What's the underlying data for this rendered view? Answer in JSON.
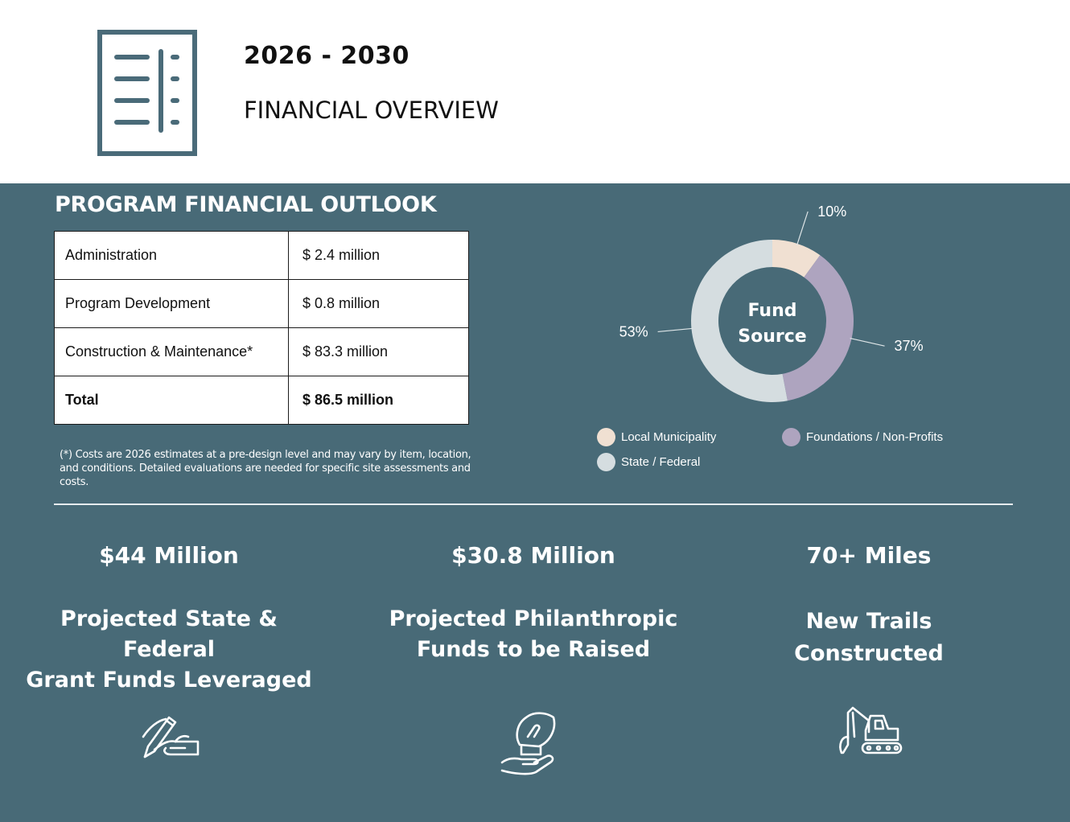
{
  "header": {
    "years": "2026 - 2030",
    "subtitle": "FINANCIAL OVERVIEW",
    "icon": "document-list-icon"
  },
  "outlook": {
    "title": "PROGRAM FINANCIAL OUTLOOK",
    "rows": [
      {
        "label": "Administration",
        "amount": "$ 2.4 million"
      },
      {
        "label": "Program Development",
        "amount": "$ 0.8 million"
      },
      {
        "label": "Construction & Maintenance*",
        "amount": "$ 83.3 million"
      }
    ],
    "total": {
      "label": "Total",
      "amount": "$ 86.5 million"
    },
    "footnote": "(*) Costs are 2026 estimates at a pre-design level and may vary by item, location, and conditions. Detailed evaluations are needed for specific site assessments and costs."
  },
  "chart_data": {
    "type": "pie",
    "title": "Fund Source",
    "center_label_lines": [
      "Fund",
      "Source"
    ],
    "categories": [
      "Local Municipality",
      "Foundations / Non-Profits",
      "State / Federal"
    ],
    "values": [
      10,
      37,
      53
    ],
    "labels": [
      "10%",
      "37%",
      "53%"
    ],
    "colors": [
      "#f0e0d2",
      "#aea4bf",
      "#d5dde0"
    ],
    "donut": true,
    "legend_position": "bottom"
  },
  "stats": [
    {
      "value": "$44 Million",
      "desc_lines": [
        "Projected State & Federal",
        "Grant Funds Leveraged"
      ],
      "icon": "hand-signing-icon"
    },
    {
      "value": "$30.8 Million",
      "desc_lines": [
        "Projected Philanthropic",
        "Funds to be Raised"
      ],
      "icon": "hand-donation-icon"
    },
    {
      "value": "70+ Miles",
      "desc_lines": [
        "New Trails",
        "Constructed"
      ],
      "icon": "excavator-icon"
    }
  ],
  "colors": {
    "panel": "#486a77",
    "icon_accent": "#4a6b79",
    "text_light": "#ffffff"
  }
}
